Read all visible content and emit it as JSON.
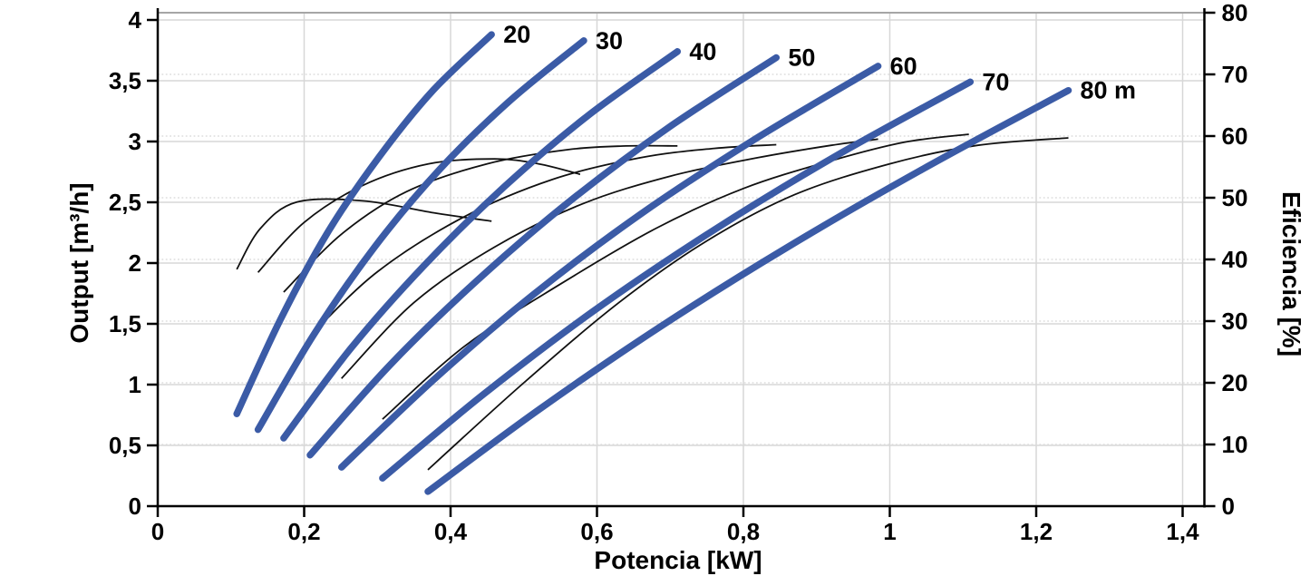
{
  "chart_data": {
    "type": "line",
    "title": "",
    "xlabel": "Potencia [kW]",
    "ylabel_left": "Output [m³/h]",
    "ylabel_right": "Eficiencia [%]",
    "x_axis": {
      "min": 0,
      "max": 1.431,
      "grid": "solid",
      "ticks": [
        {
          "v": 0,
          "label": "0"
        },
        {
          "v": 0.2,
          "label": "0,2"
        },
        {
          "v": 0.4,
          "label": "0,4"
        },
        {
          "v": 0.6,
          "label": "0,6"
        },
        {
          "v": 0.8,
          "label": "0,8"
        },
        {
          "v": 1,
          "label": "1"
        },
        {
          "v": 1.2,
          "label": "1,2"
        },
        {
          "v": 1.4,
          "label": "1,4"
        }
      ]
    },
    "y_left_axis": {
      "min": 0,
      "max": 4.06,
      "grid": "solid",
      "ticks": [
        {
          "v": 0,
          "label": "0"
        },
        {
          "v": 0.5,
          "label": "0,5"
        },
        {
          "v": 1,
          "label": "1"
        },
        {
          "v": 1.5,
          "label": "1,5"
        },
        {
          "v": 2,
          "label": "2"
        },
        {
          "v": 2.5,
          "label": "2,5"
        },
        {
          "v": 3,
          "label": "3"
        },
        {
          "v": 3.5,
          "label": "3,5"
        },
        {
          "v": 4,
          "label": "4"
        }
      ]
    },
    "y_right_axis": {
      "min": 0,
      "max": 80,
      "grid": "dotted",
      "ticks": [
        {
          "v": 0,
          "label": "0"
        },
        {
          "v": 10,
          "label": "10"
        },
        {
          "v": 20,
          "label": "20"
        },
        {
          "v": 30,
          "label": "30"
        },
        {
          "v": 40,
          "label": "40"
        },
        {
          "v": 50,
          "label": "50"
        },
        {
          "v": 60,
          "label": "60"
        },
        {
          "v": 70,
          "label": "70"
        },
        {
          "v": 80,
          "label": "80"
        }
      ]
    },
    "head_curves": [
      {
        "label": "20",
        "head_m": 20,
        "points": [
          [
            0.108,
            0.76
          ],
          [
            0.168,
            1.54
          ],
          [
            0.232,
            2.25
          ],
          [
            0.302,
            2.87
          ],
          [
            0.376,
            3.42
          ],
          [
            0.456,
            3.88
          ]
        ]
      },
      {
        "label": "30",
        "head_m": 30,
        "points": [
          [
            0.137,
            0.63
          ],
          [
            0.213,
            1.41
          ],
          [
            0.296,
            2.13
          ],
          [
            0.385,
            2.77
          ],
          [
            0.48,
            3.33
          ],
          [
            0.582,
            3.83
          ]
        ]
      },
      {
        "label": "40",
        "head_m": 40,
        "points": [
          [
            0.172,
            0.56
          ],
          [
            0.264,
            1.3
          ],
          [
            0.364,
            1.98
          ],
          [
            0.472,
            2.62
          ],
          [
            0.587,
            3.21
          ],
          [
            0.71,
            3.74
          ]
        ]
      },
      {
        "label": "50",
        "head_m": 50,
        "points": [
          [
            0.208,
            0.42
          ],
          [
            0.317,
            1.16
          ],
          [
            0.435,
            1.85
          ],
          [
            0.563,
            2.51
          ],
          [
            0.699,
            3.12
          ],
          [
            0.845,
            3.69
          ]
        ]
      },
      {
        "label": "60",
        "head_m": 60,
        "points": [
          [
            0.251,
            0.32
          ],
          [
            0.377,
            1.04
          ],
          [
            0.513,
            1.74
          ],
          [
            0.659,
            2.4
          ],
          [
            0.816,
            3.02
          ],
          [
            0.984,
            3.62
          ]
        ]
      },
      {
        "label": "70",
        "head_m": 70,
        "points": [
          [
            0.307,
            0.23
          ],
          [
            0.445,
            0.92
          ],
          [
            0.594,
            1.6
          ],
          [
            0.754,
            2.25
          ],
          [
            0.926,
            2.88
          ],
          [
            1.11,
            3.49
          ]
        ]
      },
      {
        "label": "80 m",
        "head_m": 80,
        "points": [
          [
            0.369,
            0.12
          ],
          [
            0.522,
            0.8
          ],
          [
            0.685,
            1.47
          ],
          [
            0.86,
            2.13
          ],
          [
            1.047,
            2.78
          ],
          [
            1.244,
            3.42
          ]
        ]
      }
    ],
    "efficiency_curves": [
      {
        "head_m": 20,
        "points": [
          [
            0.108,
            38.4
          ],
          [
            0.14,
            45.0
          ],
          [
            0.19,
            49.3
          ],
          [
            0.28,
            49.5
          ],
          [
            0.38,
            47.5
          ],
          [
            0.456,
            46.2
          ]
        ]
      },
      {
        "head_m": 30,
        "points": [
          [
            0.137,
            37.9
          ],
          [
            0.2,
            46.0
          ],
          [
            0.28,
            52.0
          ],
          [
            0.37,
            55.5
          ],
          [
            0.46,
            56.3
          ],
          [
            0.52,
            55.5
          ],
          [
            0.577,
            53.8
          ]
        ]
      },
      {
        "head_m": 40,
        "points": [
          [
            0.172,
            34.7
          ],
          [
            0.25,
            44.0
          ],
          [
            0.34,
            51.0
          ],
          [
            0.45,
            55.5
          ],
          [
            0.56,
            57.8
          ],
          [
            0.64,
            58.4
          ],
          [
            0.71,
            58.4
          ]
        ]
      },
      {
        "head_m": 50,
        "points": [
          [
            0.208,
            27.6
          ],
          [
            0.3,
            38.0
          ],
          [
            0.42,
            47.0
          ],
          [
            0.54,
            53.0
          ],
          [
            0.66,
            56.5
          ],
          [
            0.76,
            58.0
          ],
          [
            0.845,
            58.6
          ]
        ]
      },
      {
        "head_m": 60,
        "points": [
          [
            0.251,
            20.7
          ],
          [
            0.35,
            33.0
          ],
          [
            0.46,
            42.0
          ],
          [
            0.58,
            49.0
          ],
          [
            0.7,
            53.5
          ],
          [
            0.82,
            56.5
          ],
          [
            0.92,
            58.5
          ],
          [
            0.984,
            59.5
          ]
        ]
      },
      {
        "head_m": 70,
        "points": [
          [
            0.307,
            14.1
          ],
          [
            0.42,
            26.0
          ],
          [
            0.55,
            36.0
          ],
          [
            0.68,
            45.0
          ],
          [
            0.8,
            51.5
          ],
          [
            0.92,
            56.0
          ],
          [
            1.02,
            59.0
          ],
          [
            1.108,
            60.3
          ]
        ]
      },
      {
        "head_m": 80,
        "points": [
          [
            0.369,
            5.9
          ],
          [
            0.5,
            20.0
          ],
          [
            0.63,
            33.0
          ],
          [
            0.75,
            43.0
          ],
          [
            0.87,
            50.5
          ],
          [
            1.0,
            55.5
          ],
          [
            1.12,
            58.5
          ],
          [
            1.244,
            59.7
          ]
        ]
      }
    ],
    "colors": {
      "head_curve": "#3b5ba6",
      "efficiency_curve": "#111111",
      "grid_solid": "#d7d7d7",
      "grid_dotted": "#dedede",
      "axis": "#000000",
      "top_frame": "#a6a6a6",
      "background": "#ffffff",
      "text": "#000000"
    }
  }
}
